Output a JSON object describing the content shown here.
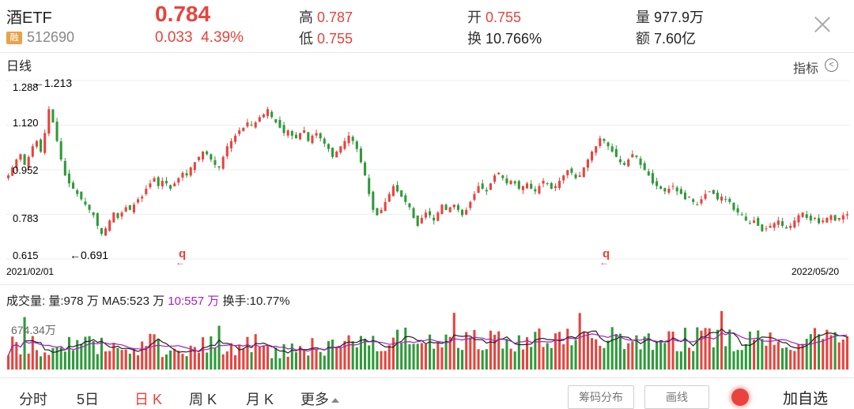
{
  "header": {
    "name": "酒ETF",
    "rong_badge": "融",
    "code": "512690",
    "price": "0.784",
    "change": "0.033",
    "change_pct": "4.39%",
    "high_label": "高",
    "high": "0.787",
    "low_label": "低",
    "low": "0.755",
    "open_label": "开",
    "open": "0.755",
    "turnover_label": "换",
    "turnover": "10.766%",
    "volume_label": "量",
    "volume": "977.9万",
    "amount_label": "额",
    "amount": "7.60亿"
  },
  "chart_bar": {
    "period_label": "日线",
    "indicator_label": "指标",
    "indicator_icon": "chevron-left-circle-icon"
  },
  "price_chart": {
    "y_ticks": [
      "1.288",
      "1.120",
      "0.952",
      "0.783",
      "0.615"
    ],
    "max_annotation": "←1.213",
    "min_annotation": "←0.691",
    "start_date": "2021/02/01",
    "end_date": "2022/05/20",
    "marker": "q"
  },
  "volume_bar": {
    "vol_text": "成交量: 量:978 万",
    "ma5_text": "MA5:523 万",
    "ma10_text": "10:557 万",
    "turnover_text": "换手:10.77%",
    "y_tick": "674.34万"
  },
  "tabs": [
    {
      "label": "分时",
      "active": false
    },
    {
      "label": "5日",
      "active": false
    },
    {
      "label": "日 K",
      "active": true
    },
    {
      "label": "周 K",
      "active": false
    },
    {
      "label": "月 K",
      "active": false
    },
    {
      "label": "更多",
      "active": false
    }
  ],
  "buttons": {
    "chip_distribution": "筹码分布",
    "draw_line": "画线",
    "add_watchlist": "加自选"
  },
  "colors": {
    "up": "#e8433d",
    "down": "#2e9a3a",
    "ma5": "#222222",
    "ma10": "#a51fbf"
  },
  "chart_data": {
    "type": "candlestick",
    "x_range": [
      "2021/02/01",
      "2022/05/20"
    ],
    "ylim": [
      0.615,
      1.288
    ],
    "close_series": [
      0.93,
      0.96,
      0.99,
      1.01,
      0.97,
      1.0,
      1.04,
      1.06,
      1.02,
      1.09,
      1.18,
      1.13,
      1.06,
      0.99,
      0.93,
      0.9,
      0.88,
      0.86,
      0.84,
      0.82,
      0.8,
      0.78,
      0.74,
      0.71,
      0.73,
      0.76,
      0.79,
      0.77,
      0.79,
      0.81,
      0.8,
      0.82,
      0.84,
      0.85,
      0.88,
      0.9,
      0.92,
      0.89,
      0.91,
      0.9,
      0.88,
      0.9,
      0.92,
      0.94,
      0.93,
      0.96,
      0.98,
      1.0,
      1.02,
      1.01,
      0.99,
      0.97,
      0.96,
      1.0,
      1.04,
      1.06,
      1.08,
      1.1,
      1.11,
      1.13,
      1.12,
      1.13,
      1.15,
      1.16,
      1.18,
      1.15,
      1.13,
      1.11,
      1.09,
      1.1,
      1.08,
      1.07,
      1.09,
      1.1,
      1.06,
      1.08,
      1.09,
      1.07,
      1.05,
      1.03,
      1.0,
      1.02,
      1.04,
      1.06,
      1.08,
      1.06,
      1.03,
      0.98,
      0.93,
      0.86,
      0.8,
      0.78,
      0.8,
      0.83,
      0.86,
      0.89,
      0.87,
      0.85,
      0.83,
      0.81,
      0.77,
      0.74,
      0.77,
      0.79,
      0.78,
      0.76,
      0.79,
      0.82,
      0.8,
      0.81,
      0.82,
      0.8,
      0.78,
      0.8,
      0.83,
      0.86,
      0.89,
      0.88,
      0.87,
      0.9,
      0.93,
      0.94,
      0.92,
      0.9,
      0.91,
      0.9,
      0.88,
      0.89,
      0.9,
      0.88,
      0.87,
      0.89,
      0.91,
      0.9,
      0.88,
      0.89,
      0.91,
      0.93,
      0.95,
      0.94,
      0.92,
      0.93,
      0.96,
      0.99,
      1.02,
      1.04,
      1.07,
      1.06,
      1.04,
      1.02,
      1.0,
      0.98,
      0.97,
      0.99,
      1.01,
      1.0,
      0.97,
      0.95,
      0.93,
      0.9,
      0.89,
      0.88,
      0.87,
      0.88,
      0.89,
      0.87,
      0.86,
      0.84,
      0.85,
      0.83,
      0.82,
      0.84,
      0.86,
      0.87,
      0.86,
      0.84,
      0.85,
      0.84,
      0.83,
      0.8,
      0.79,
      0.78,
      0.76,
      0.75,
      0.76,
      0.74,
      0.72,
      0.73,
      0.74,
      0.75,
      0.76,
      0.74,
      0.73,
      0.74,
      0.76,
      0.78,
      0.79,
      0.77,
      0.76,
      0.77,
      0.75,
      0.76,
      0.77,
      0.78,
      0.76,
      0.77,
      0.78,
      0.784
    ]
  }
}
